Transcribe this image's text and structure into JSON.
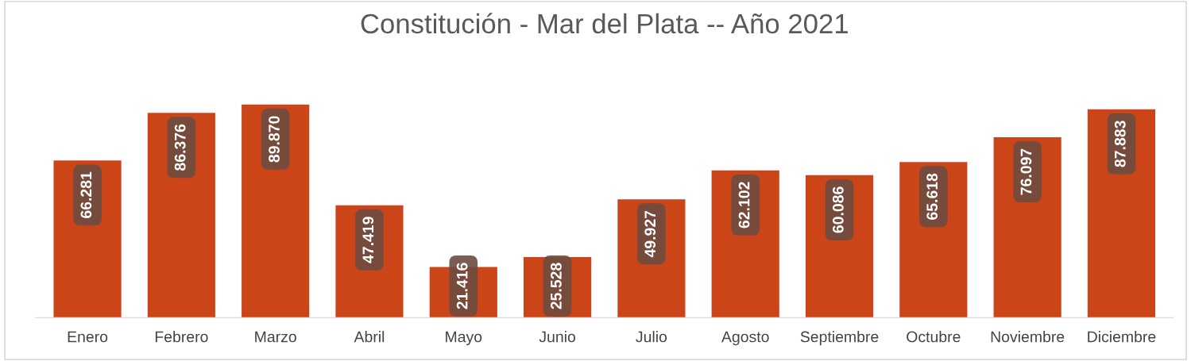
{
  "chart_data": {
    "type": "bar",
    "title": "Constitución - Mar del Plata -- Año 2021",
    "categories": [
      "Enero",
      "Febrero",
      "Marzo",
      "Abril",
      "Mayo",
      "Junio",
      "Julio",
      "Agosto",
      "Septiembre",
      "Octubre",
      "Noviembre",
      "Diciembre"
    ],
    "values": [
      66281,
      86376,
      89870,
      47419,
      21416,
      25528,
      49927,
      62102,
      60086,
      65618,
      76097,
      87883
    ],
    "value_labels": [
      "66.281",
      "86.376",
      "89.870",
      "47.419",
      "21.416",
      "25.528",
      "49.927",
      "62.102",
      "60.086",
      "65.618",
      "76.097",
      "87.883"
    ],
    "color": "#cc4519",
    "grid": false,
    "legend": false,
    "tick_labels": "x"
  }
}
